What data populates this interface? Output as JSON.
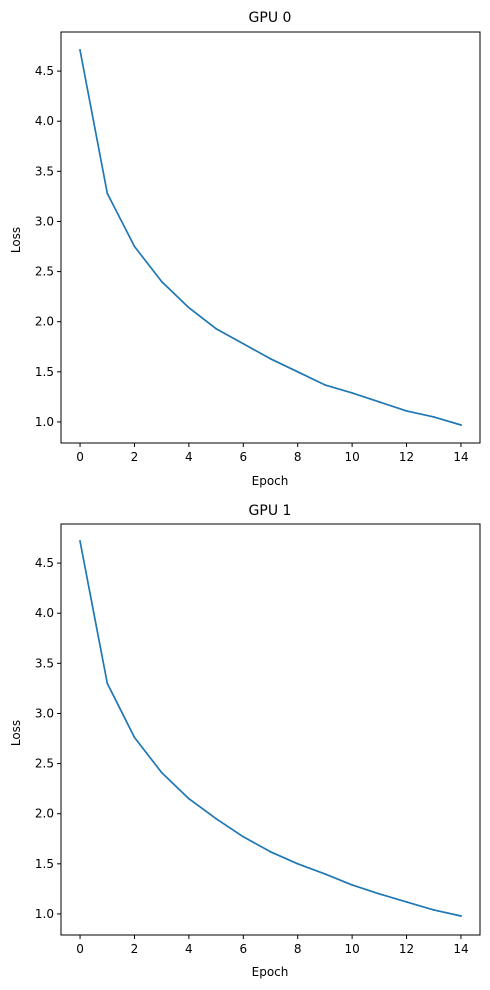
{
  "chart_data": [
    {
      "type": "line",
      "title": "GPU 0",
      "xlabel": "Epoch",
      "ylabel": "Loss",
      "xlim": [
        -0.7,
        14.7
      ],
      "ylim": [
        0.79,
        4.89
      ],
      "xticks": [
        0,
        2,
        4,
        6,
        8,
        10,
        12,
        14
      ],
      "xtick_labels": [
        "0",
        "2",
        "4",
        "6",
        "8",
        "10",
        "12",
        "14"
      ],
      "yticks": [
        1.0,
        1.5,
        2.0,
        2.5,
        3.0,
        3.5,
        4.0,
        4.5
      ],
      "ytick_labels": [
        "1.0",
        "1.5",
        "2.0",
        "2.5",
        "3.0",
        "3.5",
        "4.0",
        "4.5"
      ],
      "grid": false,
      "series": [
        {
          "color": "#1f77b4",
          "x": [
            0,
            1,
            2,
            3,
            4,
            5,
            6,
            7,
            8,
            9,
            10,
            11,
            12,
            13,
            14
          ],
          "values": [
            4.71,
            3.28,
            2.75,
            2.4,
            2.14,
            1.93,
            1.78,
            1.63,
            1.5,
            1.37,
            1.29,
            1.2,
            1.11,
            1.05,
            0.97
          ]
        }
      ]
    },
    {
      "type": "line",
      "title": "GPU 1",
      "xlabel": "Epoch",
      "ylabel": "Loss",
      "xlim": [
        -0.7,
        14.7
      ],
      "ylim": [
        0.79,
        4.89
      ],
      "xticks": [
        0,
        2,
        4,
        6,
        8,
        10,
        12,
        14
      ],
      "xtick_labels": [
        "0",
        "2",
        "4",
        "6",
        "8",
        "10",
        "12",
        "14"
      ],
      "yticks": [
        1.0,
        1.5,
        2.0,
        2.5,
        3.0,
        3.5,
        4.0,
        4.5
      ],
      "ytick_labels": [
        "1.0",
        "1.5",
        "2.0",
        "2.5",
        "3.0",
        "3.5",
        "4.0",
        "4.5"
      ],
      "grid": false,
      "series": [
        {
          "color": "#1f77b4",
          "x": [
            0,
            1,
            2,
            3,
            4,
            5,
            6,
            7,
            8,
            9,
            10,
            11,
            12,
            13,
            14
          ],
          "values": [
            4.72,
            3.3,
            2.76,
            2.41,
            2.15,
            1.95,
            1.77,
            1.62,
            1.5,
            1.4,
            1.29,
            1.2,
            1.12,
            1.04,
            0.98
          ]
        }
      ]
    }
  ]
}
